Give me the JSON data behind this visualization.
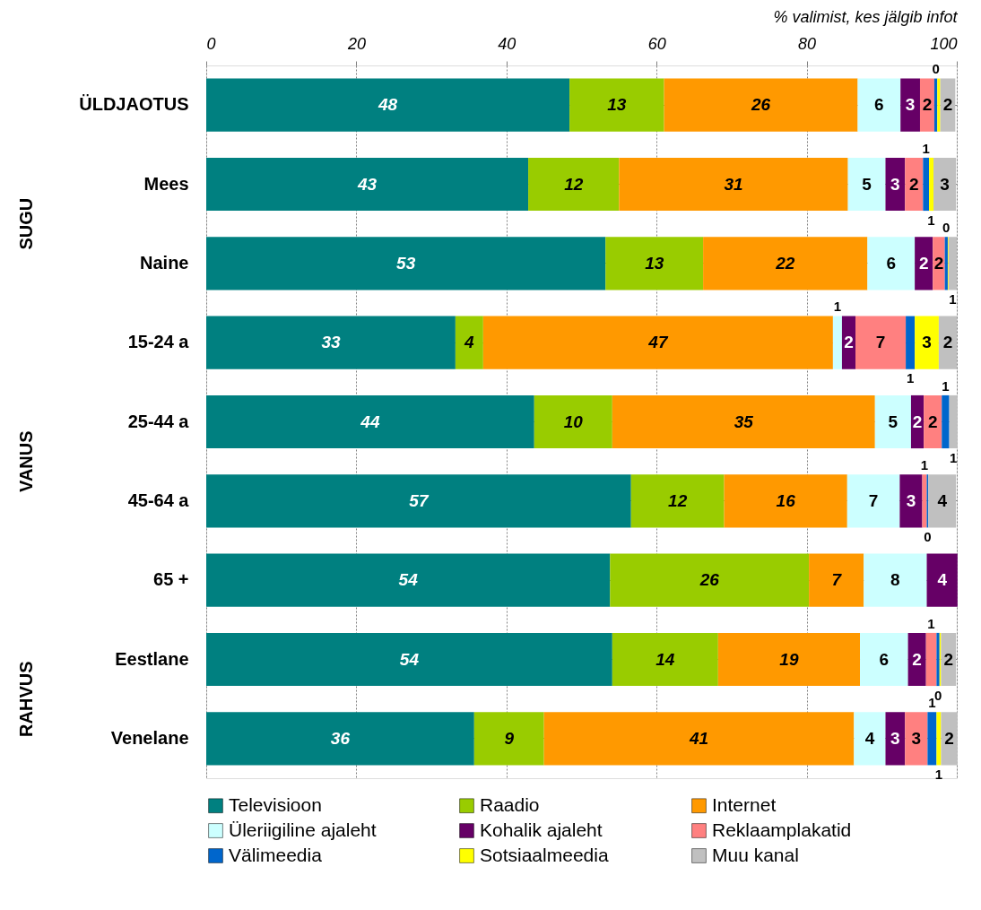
{
  "chart_data": {
    "type": "bar",
    "orientation": "horizontal",
    "stacked": true,
    "xlabel": "% valimist, kes jälgib infot",
    "categories": [
      "ÜLDJAOTUS",
      "Mees",
      "Naine",
      "15-24 a",
      "25-44 a",
      "45-64 a",
      "65 +",
      "Eestlane",
      "Venelane"
    ],
    "xlim": [
      0,
      100
    ],
    "xticks": [
      0,
      20,
      40,
      60,
      80,
      100
    ],
    "grid": "x",
    "legend": "bottom",
    "annotations": [
      "SUGU",
      "VANUS",
      "RAHVUS"
    ],
    "series": [
      {
        "name": "Televisioon",
        "color": "#008080",
        "values": [
          48.4,
          42.9,
          53.2,
          33.2,
          43.7,
          56.6,
          53.8,
          54.1,
          35.7
        ],
        "value_labels": [
          "48",
          "43",
          "53",
          "33",
          "44",
          "57",
          "54",
          "54",
          "36"
        ]
      },
      {
        "name": "Raadio",
        "color": "#99cc00",
        "values": [
          12.6,
          12.1,
          13.0,
          3.7,
          10.4,
          12.4,
          26.5,
          14.1,
          9.3
        ],
        "value_labels": [
          "13",
          "12",
          "13",
          "4",
          "10",
          "12",
          "26",
          "14",
          "9"
        ]
      },
      {
        "name": "Internet",
        "color": "#ff9900",
        "values": [
          25.8,
          30.5,
          21.9,
          46.6,
          35.0,
          16.4,
          7.3,
          18.9,
          41.3
        ],
        "value_labels": [
          "26",
          "31",
          "22",
          "47",
          "35",
          "16",
          "7",
          "19",
          "41"
        ]
      },
      {
        "name": "Üleriigiline ajaleht",
        "color": "#ccffff",
        "values": [
          5.7,
          5.0,
          6.3,
          1.2,
          4.8,
          7.0,
          8.4,
          6.4,
          4.2
        ],
        "value_labels": [
          "6",
          "5",
          "6",
          "1",
          "5",
          "7",
          "8",
          "6",
          "4"
        ]
      },
      {
        "name": "Kohalik ajaleht",
        "color": "#660066",
        "values": [
          2.6,
          2.6,
          2.4,
          1.8,
          1.7,
          3.0,
          4.1,
          2.4,
          2.6
        ],
        "value_labels": [
          "3",
          "3",
          "2",
          "2",
          "2",
          "3",
          "4",
          "2",
          "3"
        ]
      },
      {
        "name": "Reklaamplakatid",
        "color": "#ff8080",
        "values": [
          1.9,
          2.4,
          1.6,
          6.7,
          2.4,
          0.6,
          0,
          1.4,
          3.0
        ],
        "value_labels": [
          "2",
          "2",
          "2",
          "7",
          "2",
          "1",
          null,
          "1",
          "3"
        ]
      },
      {
        "name": "Välimeedia",
        "color": "#0066cc",
        "values": [
          0.4,
          0.8,
          0.4,
          1.2,
          1.0,
          0.2,
          0,
          0.4,
          1.2
        ],
        "value_labels": [
          "0",
          "1",
          "0",
          "1",
          "1",
          "0",
          null,
          "0",
          "1"
        ]
      },
      {
        "name": "Sotsiaalmeedia",
        "color": "#ffff00",
        "values": [
          0.4,
          0.6,
          0.1,
          3.2,
          0,
          0,
          0,
          0.2,
          0.6
        ],
        "value_labels": [
          null,
          "1",
          null,
          "3",
          null,
          null,
          null,
          null,
          "1"
        ]
      },
      {
        "name": "Muu kanal",
        "color": "#c0c0c0",
        "values": [
          2.0,
          3.0,
          1.1,
          2.4,
          1.1,
          3.7,
          0,
          2.0,
          2.2
        ],
        "value_labels": [
          "2",
          "3",
          "1",
          "2",
          "1",
          "4",
          null,
          "2",
          "2"
        ]
      }
    ]
  }
}
